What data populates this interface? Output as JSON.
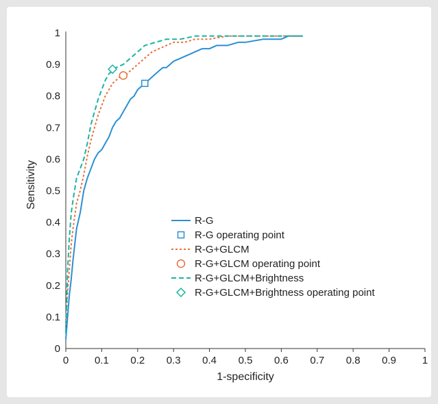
{
  "chart_data": {
    "type": "line",
    "xlabel": "1-specificity",
    "ylabel": "Sensitivity",
    "xlim": [
      0,
      1
    ],
    "ylim": [
      0,
      1
    ],
    "xticks": [
      "0",
      "0.1",
      "0.2",
      "0.3",
      "0.4",
      "0.5",
      "0.6",
      "0.7",
      "0.8",
      "0.9",
      "1"
    ],
    "yticks": [
      "0",
      "0.1",
      "0.2",
      "0.3",
      "0.4",
      "0.5",
      "0.6",
      "0.7",
      "0.8",
      "0.9",
      "1"
    ],
    "grid": false,
    "legend_position": "center-right",
    "colors": {
      "rg": "#2a8fd2",
      "glcm": "#e8703a",
      "bright": "#1ab3a0"
    },
    "series": [
      {
        "name": "R-G",
        "style": "solid",
        "color": "#2a8fd2",
        "x": [
          0,
          0.005,
          0.01,
          0.015,
          0.02,
          0.025,
          0.03,
          0.04,
          0.05,
          0.06,
          0.07,
          0.08,
          0.09,
          0.1,
          0.11,
          0.12,
          0.13,
          0.14,
          0.15,
          0.16,
          0.17,
          0.18,
          0.19,
          0.2,
          0.21,
          0.22,
          0.23,
          0.24,
          0.25,
          0.26,
          0.27,
          0.28,
          0.29,
          0.3,
          0.32,
          0.34,
          0.36,
          0.38,
          0.4,
          0.42,
          0.45,
          0.48,
          0.5,
          0.55,
          0.6,
          0.62,
          0.66
        ],
        "y": [
          0.03,
          0.1,
          0.17,
          0.22,
          0.28,
          0.33,
          0.38,
          0.43,
          0.5,
          0.54,
          0.57,
          0.6,
          0.62,
          0.63,
          0.65,
          0.67,
          0.7,
          0.72,
          0.73,
          0.75,
          0.77,
          0.79,
          0.8,
          0.82,
          0.83,
          0.84,
          0.85,
          0.86,
          0.87,
          0.88,
          0.89,
          0.89,
          0.9,
          0.91,
          0.92,
          0.93,
          0.94,
          0.95,
          0.95,
          0.96,
          0.96,
          0.97,
          0.97,
          0.98,
          0.98,
          0.99,
          0.99
        ]
      },
      {
        "name": "R-G operating point",
        "marker": "square",
        "color": "#2a8fd2",
        "x": [
          0.22
        ],
        "y": [
          0.84
        ]
      },
      {
        "name": "R-G+GLCM",
        "style": "dotted",
        "color": "#e8703a",
        "x": [
          0,
          0.005,
          0.01,
          0.015,
          0.02,
          0.03,
          0.04,
          0.05,
          0.06,
          0.07,
          0.08,
          0.09,
          0.1,
          0.11,
          0.12,
          0.13,
          0.14,
          0.15,
          0.16,
          0.17,
          0.18,
          0.2,
          0.22,
          0.24,
          0.26,
          0.28,
          0.3,
          0.33,
          0.36,
          0.4,
          0.45,
          0.5,
          0.55,
          0.6,
          0.66
        ],
        "y": [
          0.08,
          0.18,
          0.25,
          0.33,
          0.38,
          0.46,
          0.5,
          0.55,
          0.61,
          0.66,
          0.7,
          0.74,
          0.77,
          0.8,
          0.82,
          0.84,
          0.85,
          0.86,
          0.86,
          0.87,
          0.88,
          0.9,
          0.92,
          0.94,
          0.95,
          0.96,
          0.97,
          0.97,
          0.98,
          0.98,
          0.99,
          0.99,
          0.99,
          0.99,
          0.99
        ]
      },
      {
        "name": "R-G+GLCM operating point",
        "marker": "circle",
        "color": "#e8703a",
        "x": [
          0.16
        ],
        "y": [
          0.865
        ]
      },
      {
        "name": "R-G+GLCM+Brightness",
        "style": "dashed",
        "color": "#1ab3a0",
        "x": [
          0,
          0.005,
          0.01,
          0.015,
          0.02,
          0.03,
          0.04,
          0.05,
          0.06,
          0.07,
          0.08,
          0.09,
          0.1,
          0.11,
          0.12,
          0.13,
          0.14,
          0.16,
          0.18,
          0.2,
          0.22,
          0.25,
          0.28,
          0.32,
          0.36,
          0.4,
          0.45,
          0.5,
          0.55,
          0.6,
          0.66
        ],
        "y": [
          0.05,
          0.25,
          0.35,
          0.43,
          0.47,
          0.54,
          0.57,
          0.6,
          0.65,
          0.71,
          0.75,
          0.79,
          0.82,
          0.85,
          0.87,
          0.88,
          0.89,
          0.9,
          0.92,
          0.94,
          0.96,
          0.97,
          0.98,
          0.98,
          0.99,
          0.99,
          0.99,
          0.99,
          0.99,
          0.99,
          0.99
        ]
      },
      {
        "name": "R-G+GLCM+Brightness operating point",
        "marker": "diamond",
        "color": "#1ab3a0",
        "x": [
          0.13
        ],
        "y": [
          0.885
        ]
      }
    ]
  }
}
